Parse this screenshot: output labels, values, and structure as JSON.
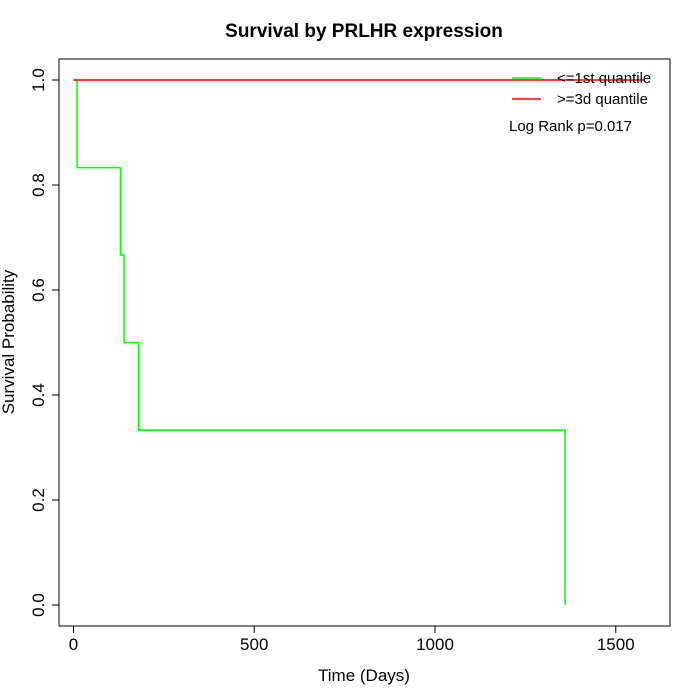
{
  "chart_data": {
    "type": "line",
    "title": "Survival by PRLHR expression",
    "xlabel": "Time (Days)",
    "ylabel": "Survival Probability",
    "xlim": [
      -40,
      1650
    ],
    "ylim": [
      -0.04,
      1.04
    ],
    "x_ticks": [
      0,
      500,
      1000,
      1500
    ],
    "x_tick_labels": [
      "0",
      "500",
      "1000",
      "1500"
    ],
    "y_ticks": [
      0.0,
      0.2,
      0.4,
      0.6,
      0.8,
      1.0
    ],
    "y_tick_labels": [
      "0.0",
      "0.2",
      "0.4",
      "0.6",
      "0.8",
      "1.0"
    ],
    "grid": false,
    "legend_position": "top-right",
    "annotation": "Log Rank p=0.017",
    "series": [
      {
        "name": "<=1st quantile",
        "color": "#00ff00",
        "step": true,
        "points": [
          [
            0,
            1.0
          ],
          [
            10,
            0.833
          ],
          [
            130,
            0.667
          ],
          [
            140,
            0.5
          ],
          [
            180,
            0.333
          ],
          [
            1360,
            0.0
          ]
        ]
      },
      {
        "name": ">=3d quantile",
        "color": "#ff0000",
        "step": true,
        "points": [
          [
            0,
            1.0
          ],
          [
            1580,
            1.0
          ]
        ]
      }
    ]
  }
}
